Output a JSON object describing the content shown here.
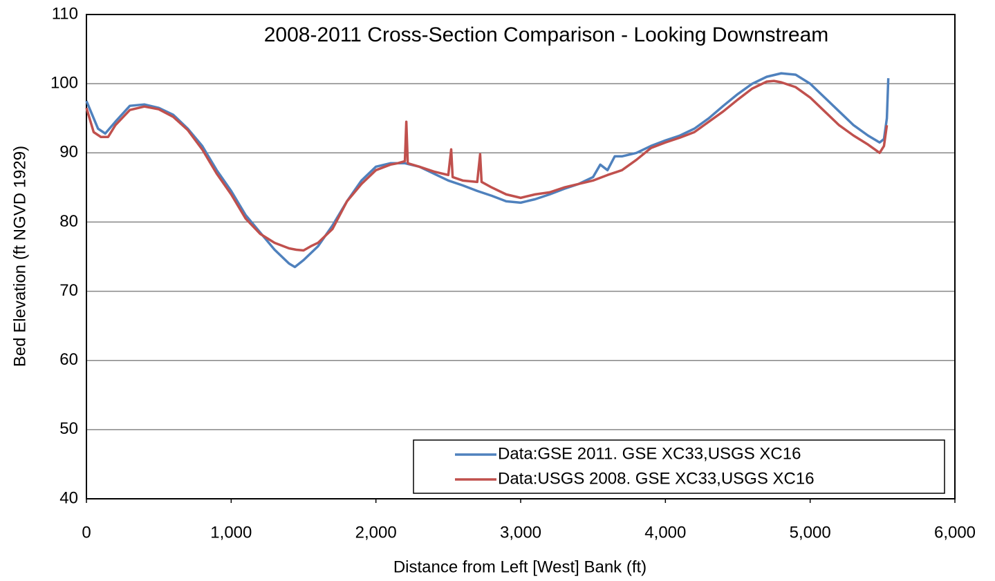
{
  "chart_data": {
    "type": "line",
    "title": "2008-2011 Cross-Section Comparison - Looking Downstream",
    "x_label": "Distance from Left [West] Bank (ft)",
    "y_label": "Bed Elevation (ft NGVD 1929)",
    "xlim": [
      0,
      6000
    ],
    "xticks": [
      0,
      {
        "value": 1000,
        "label": "1,000"
      },
      {
        "value": 2000,
        "label": "2,000"
      },
      {
        "value": 3000,
        "label": "3,000"
      },
      {
        "value": 4000,
        "label": "4,000"
      },
      {
        "value": 5000,
        "label": "5,000"
      },
      {
        "value": 6000,
        "label": "6,000"
      }
    ],
    "ylim": [
      40,
      110
    ],
    "yticks": [
      40,
      50,
      60,
      70,
      80,
      90,
      100,
      110
    ],
    "grid": true,
    "legend": "lower right",
    "series": [
      {
        "name": "Data:GSE 2011. GSE XC33,USGS XC16",
        "color": "#4f81bd",
        "x": [
          0,
          30,
          80,
          130,
          200,
          300,
          400,
          500,
          600,
          700,
          800,
          900,
          1000,
          1100,
          1200,
          1300,
          1400,
          1440,
          1500,
          1600,
          1700,
          1800,
          1900,
          2000,
          2100,
          2200,
          2300,
          2400,
          2500,
          2600,
          2700,
          2800,
          2900,
          3000,
          3100,
          3200,
          3300,
          3400,
          3500,
          3550,
          3600,
          3650,
          3700,
          3800,
          3900,
          4000,
          4100,
          4200,
          4300,
          4400,
          4500,
          4600,
          4700,
          4800,
          4900,
          5000,
          5100,
          5200,
          5300,
          5400,
          5480,
          5510,
          5530,
          5540
        ],
        "values": [
          97.5,
          96,
          93.5,
          92.8,
          94.5,
          96.8,
          97,
          96.5,
          95.5,
          93.5,
          91,
          87.5,
          84.5,
          81,
          78.5,
          76,
          74,
          73.5,
          74.5,
          76.5,
          79.5,
          83,
          86,
          88,
          88.5,
          88.5,
          88,
          87,
          86,
          85.3,
          84.5,
          83.8,
          83,
          82.8,
          83.3,
          84,
          84.8,
          85.5,
          86.5,
          88.3,
          87.5,
          89.5,
          89.5,
          90,
          91,
          91.8,
          92.5,
          93.5,
          95,
          96.8,
          98.5,
          100,
          101,
          101.5,
          101.3,
          100,
          98,
          96,
          94,
          92.5,
          91.5,
          92,
          95,
          100.8
        ]
      },
      {
        "name": "Data:USGS 2008. GSE XC33,USGS XC16",
        "color": "#c0504d",
        "x": [
          0,
          50,
          100,
          150,
          200,
          300,
          400,
          500,
          600,
          700,
          800,
          900,
          1000,
          1100,
          1200,
          1300,
          1400,
          1450,
          1500,
          1550,
          1600,
          1700,
          1750,
          1800,
          1900,
          2000,
          2100,
          2150,
          2200,
          2210,
          2220,
          2300,
          2400,
          2500,
          2520,
          2530,
          2600,
          2700,
          2720,
          2730,
          2800,
          2900,
          3000,
          3100,
          3200,
          3300,
          3400,
          3500,
          3600,
          3700,
          3800,
          3900,
          4000,
          4100,
          4200,
          4300,
          4400,
          4500,
          4600,
          4700,
          4750,
          4800,
          4900,
          5000,
          5100,
          5200,
          5300,
          5400,
          5480,
          5510,
          5530
        ],
        "values": [
          96.5,
          93,
          92.3,
          92.3,
          94,
          96.2,
          96.7,
          96.3,
          95.2,
          93.3,
          90.5,
          87,
          84,
          80.5,
          78.3,
          77,
          76.2,
          76,
          75.9,
          76.5,
          77,
          79,
          81,
          83,
          85.5,
          87.5,
          88.3,
          88.5,
          88.8,
          94.5,
          88.5,
          88,
          87.3,
          86.8,
          90.5,
          86.5,
          86,
          85.8,
          89.8,
          85.8,
          85,
          84,
          83.5,
          84,
          84.3,
          85,
          85.5,
          86,
          86.8,
          87.5,
          89,
          90.7,
          91.5,
          92.2,
          93,
          94.5,
          96,
          97.7,
          99.3,
          100.3,
          100.4,
          100.2,
          99.5,
          98,
          96,
          94,
          92.5,
          91.2,
          90,
          91,
          94
        ]
      }
    ]
  }
}
